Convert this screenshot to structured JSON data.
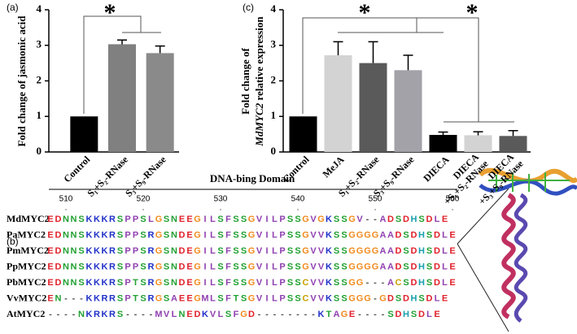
{
  "chart_data": [
    {
      "type": "bar",
      "panel": "(a)",
      "ylabel": "Fold change of jasmonic acid",
      "categories": [
        "Control",
        "S₁+S₂-RNase",
        "S₃+S₉-RNase"
      ],
      "values": [
        1.0,
        3.03,
        2.78
      ],
      "errors": [
        0,
        0.12,
        0.2
      ],
      "colors": [
        "#000000",
        "#808080",
        "#8a8a8a"
      ],
      "ylim": [
        0,
        4
      ],
      "yticks": [
        0,
        1,
        2,
        3,
        4
      ],
      "annotations": [
        "*"
      ]
    },
    {
      "type": "bar",
      "panel": "(c)",
      "ylabel": "Fold change of",
      "ylabel_gene": "MdMYC2",
      "ylabel_rest": " relative expression",
      "categories": [
        "Control",
        "MeJA",
        "S₁+S₂-RNase",
        "S₃+S₉-RNase",
        "DIECA",
        "DIECA +S₁+S₂-RNase",
        "DIECA +S₃+S₉-RNase"
      ],
      "values": [
        1.0,
        2.72,
        2.5,
        2.3,
        0.48,
        0.47,
        0.45
      ],
      "errors": [
        0,
        0.38,
        0.6,
        0.42,
        0.08,
        0.1,
        0.15
      ],
      "colors": [
        "#000000",
        "#d3d3d3",
        "#5a5a5a",
        "#a2a2a8",
        "#000000",
        "#d3d3d3",
        "#5a5a5a"
      ],
      "ylim": [
        0,
        4
      ],
      "yticks": [
        0,
        1,
        2,
        3,
        4
      ],
      "annotations": [
        "*",
        "*"
      ]
    }
  ],
  "alignment": {
    "panel": "(b)",
    "title": "DNA-bing Domain",
    "ruler": [
      "510",
      "520",
      "530",
      "540",
      "550",
      "560"
    ],
    "rows": [
      {
        "name": "MdMYC2",
        "seq": "EDNNSKKKRSPPSLGSNEEGILSFSSGVILPSSGVGKSSGV--ADSDHSDLE"
      },
      {
        "name": "PaMYC2",
        "seq": "EDNNSKKKRSPPSRGSNDEGILSFSSGVILPSSGVVKSSGGGGAADSDHSDLE"
      },
      {
        "name": "PmMYC2",
        "seq": "EDNNSKKKRSPPSRGSNDEGILSFSSGVILPSSGVVKSSGGGGAADSDHSDLE"
      },
      {
        "name": "PpMYC2",
        "seq": "EDNNSKKKRSPPSRGSNDEGILSFSSGVILPSSGVVKSSGGGGAADSDHSDLE"
      },
      {
        "name": "PbMYC2",
        "seq": "EDNNSKKKRSPTSRGSNDEGILSFSSGVILPSSCVVKSSGG---ACSDHSDLE"
      },
      {
        "name": "VvMYC2",
        "seq": "EN---KKRRSPTSRGSAEEGMLSFTSGVILPSSCVVKSSGGG-GDSDHSDLE"
      },
      {
        "name": "AtMYC2",
        "seq": "----NKRKRS----MVLNEDKVLSFGD--------KTAGE----SDHSDLE"
      }
    ]
  }
}
